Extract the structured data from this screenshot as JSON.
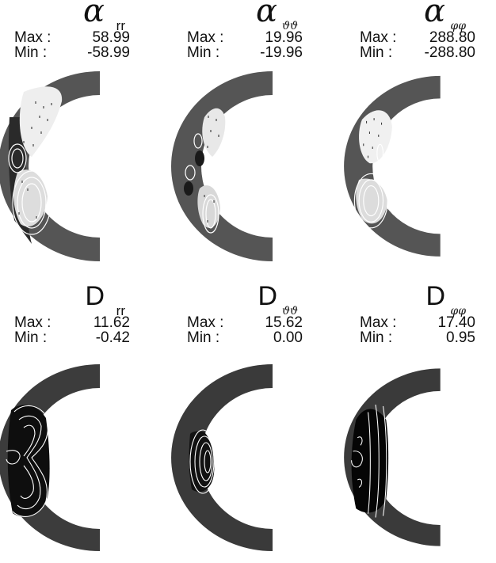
{
  "panels": [
    {
      "id": "alpha-rr",
      "symbol": "α",
      "subscript": "rr",
      "max_label": "Max :",
      "max": "58.99",
      "min_label": "Min  :",
      "min": "-58.99"
    },
    {
      "id": "alpha-thth",
      "symbol": "α",
      "subscript": "ϑϑ",
      "max_label": "Max :",
      "max": "19.96",
      "min_label": "Min  :",
      "min": "-19.96"
    },
    {
      "id": "alpha-phph",
      "symbol": "α",
      "subscript": "φφ",
      "max_label": "Max :",
      "max": "288.80",
      "min_label": "Min  :",
      "min": "-288.80"
    },
    {
      "id": "D-rr",
      "symbol": "D",
      "subscript": "rr",
      "max_label": "Max :",
      "max": "11.62",
      "min_label": "Min  :",
      "min": "-0.42"
    },
    {
      "id": "D-thth",
      "symbol": "D",
      "subscript": "ϑϑ",
      "max_label": "Max :",
      "max": "15.62",
      "min_label": "Min  :",
      "min": "0.00"
    },
    {
      "id": "D-phph",
      "symbol": "D",
      "subscript": "φφ",
      "max_label": "Max :",
      "max": "17.40",
      "min_label": "Min  :",
      "min": "0.95"
    }
  ],
  "colors": {
    "shell": "#555555",
    "background_dark": "#3a3a3a",
    "light": "#f2f2f2",
    "contour": "#ffffff"
  }
}
